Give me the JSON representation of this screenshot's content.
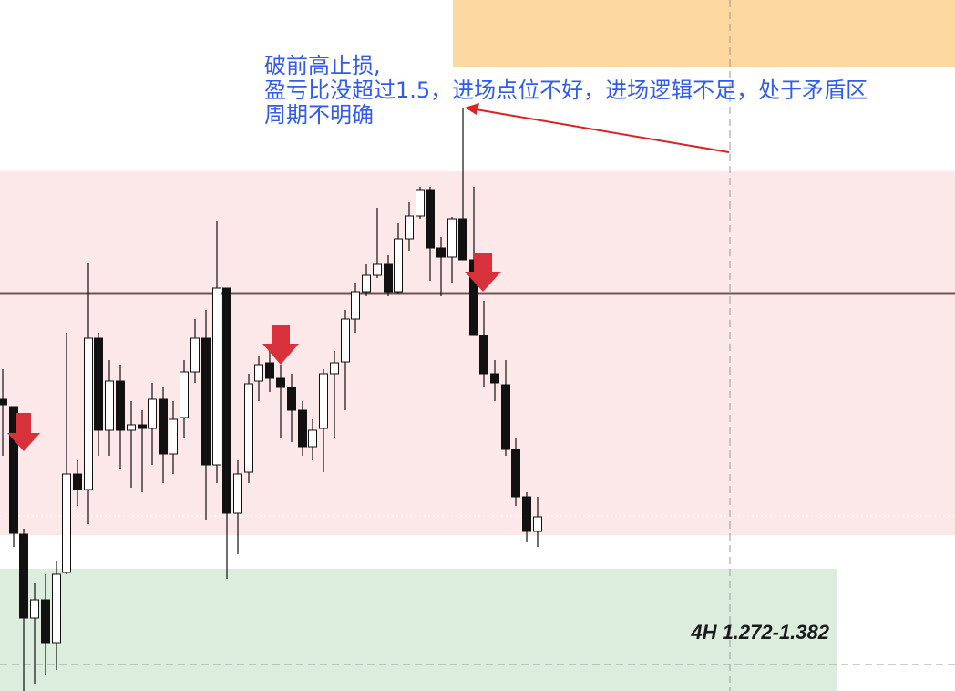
{
  "annotation": {
    "lines": [
      "破前高止损,",
      "盈亏比没超过1.5，进场点位不好，进场逻辑不足，处于矛盾区",
      "周期不明确"
    ]
  },
  "zone_label": "4H 1.272-1.382"
}
